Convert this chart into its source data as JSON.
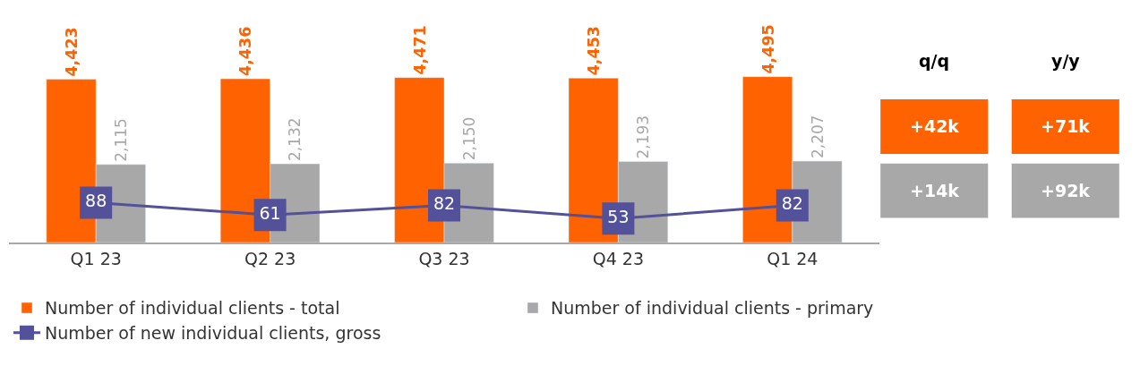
{
  "chart_data": [
    {
      "type": "bar",
      "categories": [
        "Q1 23",
        "Q2 23",
        "Q3 23",
        "Q4 23",
        "Q1 24"
      ],
      "series": [
        {
          "name": "Number of individual clients - total",
          "color": "#ff6200",
          "values": [
            4423,
            4436,
            4471,
            4453,
            4495
          ],
          "value_labels": [
            "4,423",
            "4,436",
            "4,471",
            "4,453",
            "4,495"
          ]
        },
        {
          "name": "Number of individual clients - primary",
          "color": "#a8a8a8",
          "values": [
            2115,
            2132,
            2150,
            2193,
            2207
          ],
          "value_labels": [
            "2,115",
            "2,132",
            "2,150",
            "2,193",
            "2,207"
          ]
        },
        {
          "name": "Number of new individual clients, gross",
          "color": "#525199",
          "type": "line",
          "axis": "y2",
          "values": [
            88,
            61,
            82,
            53,
            82
          ],
          "value_labels": [
            "88",
            "61",
            "82",
            "53",
            "82"
          ]
        }
      ],
      "tick_labels": "x",
      "legend": "bottom",
      "marker": "square",
      "line_style": "solid"
    },
    {
      "type": "other",
      "categories": [
        "q/q",
        "y/y"
      ],
      "annotations": [
        "+42k",
        "+71k",
        "+14k",
        "+92k"
      ],
      "colors": [
        "#ff6200",
        "#ff6200",
        "#a8a8a8",
        "#a8a8a8"
      ]
    }
  ]
}
